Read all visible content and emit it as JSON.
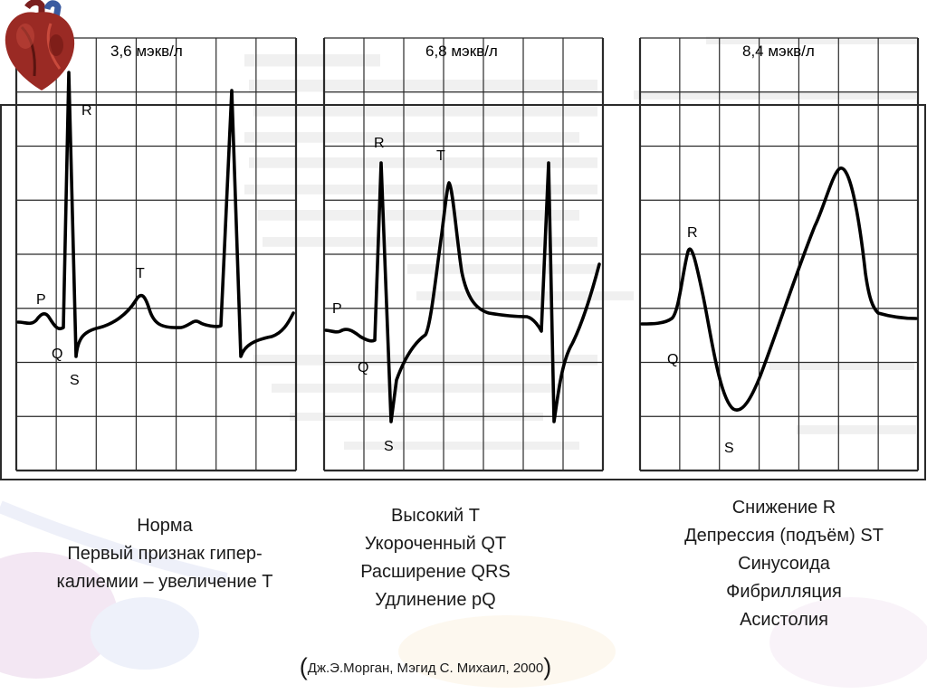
{
  "panels": [
    {
      "concentration": "3,6 мэкв/л",
      "labels": {
        "P": "P",
        "Q": "Q",
        "R": "R",
        "S": "S",
        "T": "T"
      }
    },
    {
      "concentration": "6,8 мэкв/л",
      "labels": {
        "P": "P",
        "Q": "Q",
        "R": "R",
        "S": "S",
        "T": "T"
      }
    },
    {
      "concentration": "8,4 мэкв/л",
      "labels": {
        "Q": "Q",
        "R": "R",
        "S": "S"
      }
    }
  ],
  "captions": [
    {
      "lines": [
        "Норма",
        "Первый признак гипер-",
        "калиемии – увеличение Т"
      ]
    },
    {
      "lines": [
        "Высокий Т",
        "Укороченный QT",
        "Расширение QRS",
        "Удлинение pQ"
      ]
    },
    {
      "lines": [
        "Снижение R",
        "Депрессия (подъём) ST",
        "Синусоида",
        "Фибрилляция",
        "Асистолия"
      ]
    }
  ],
  "citation": {
    "open": "(",
    "text": "Дж.Э.Морган, Мэгид С. Михаил, 2000",
    "close": ")"
  },
  "colors": {
    "grid": "#2a2a2a",
    "trace": "#000000",
    "caption": "#1a1a1a"
  },
  "logo_icon": "heart-icon"
}
